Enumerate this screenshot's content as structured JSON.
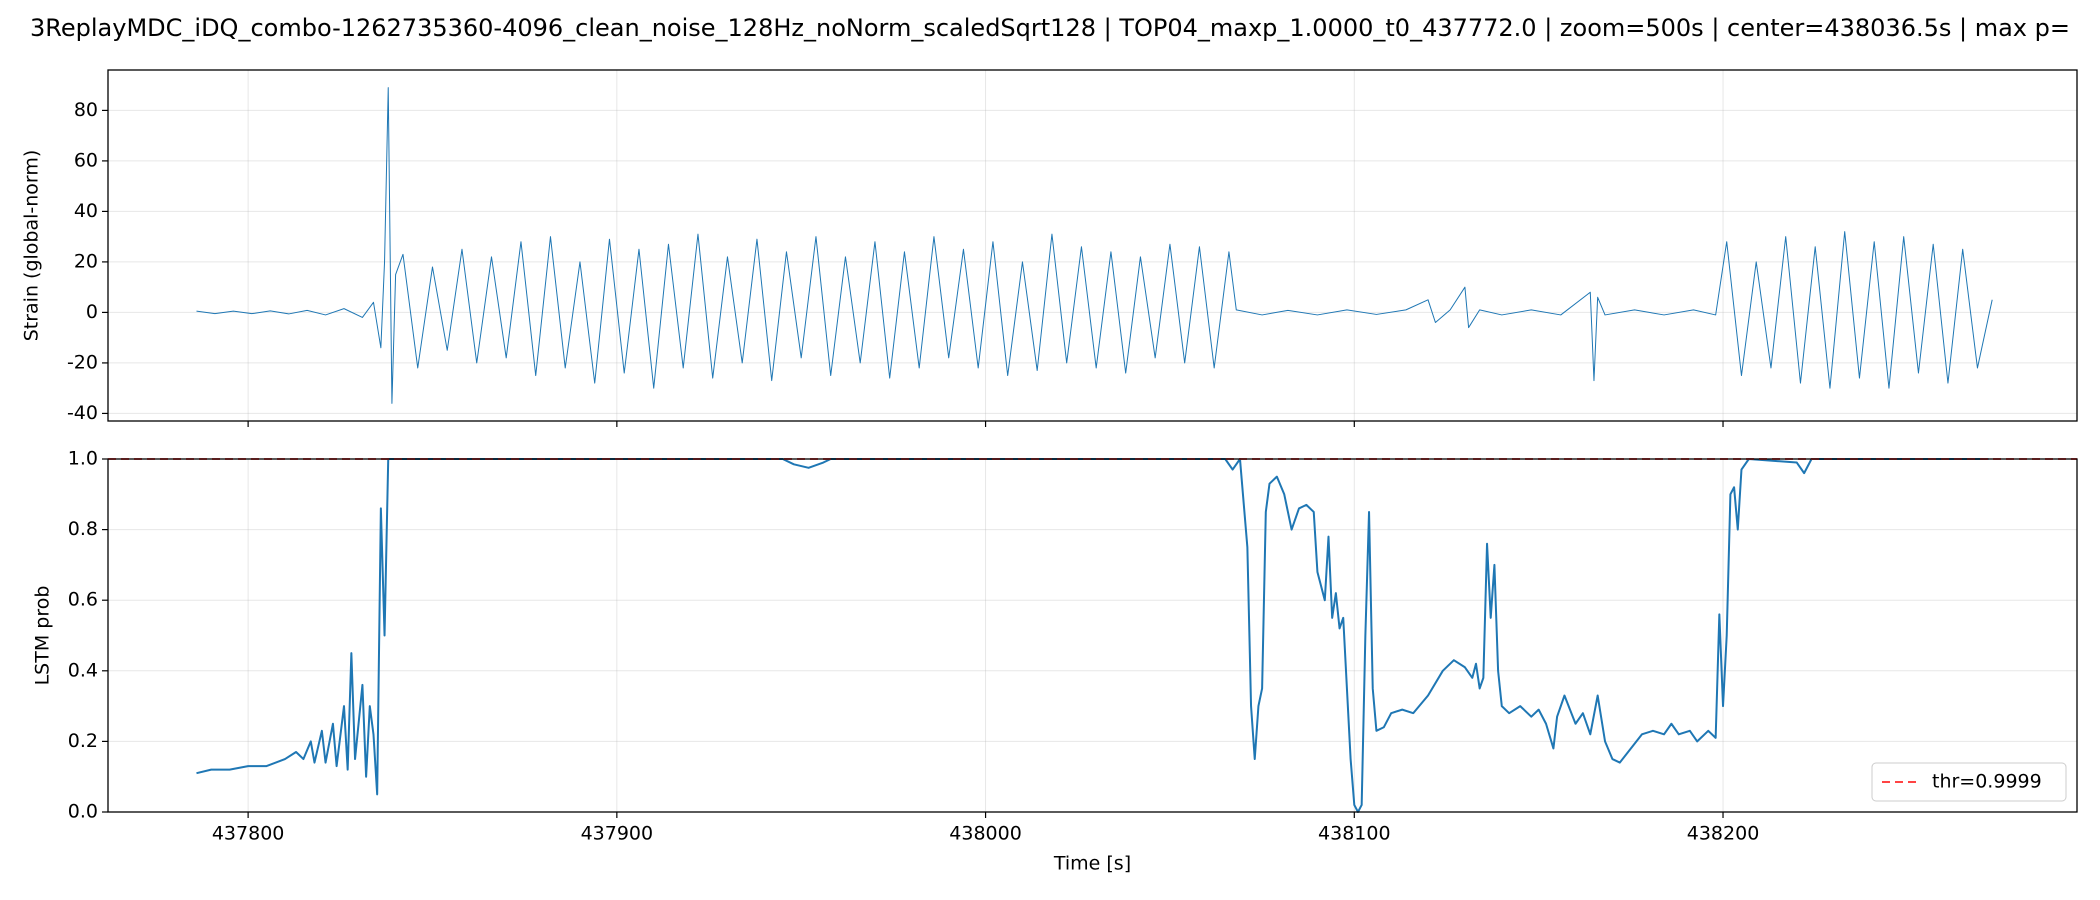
{
  "chart_data": [
    {
      "type": "line",
      "title": "3ReplayMDC_iDQ_combo-1262735360-4096_clean_noise_128Hz_noNorm_scaledSqrt128 | TOP04_maxp_1.0000_t0_437772.0 | zoom=500s | center=438036.5s | max p=",
      "ylabel": "Strain (global-norm)",
      "xlim": [
        437762,
        438296
      ],
      "xticks": [
        437800,
        437900,
        438000,
        438100,
        438200
      ],
      "ylim": [
        -43,
        96
      ],
      "yticks": [
        -40,
        -20,
        0,
        20,
        40,
        60,
        80
      ],
      "grid": true,
      "x": [
        437786,
        437791,
        437796,
        437801,
        437806,
        437811,
        437816,
        437821,
        437826,
        437831,
        437834,
        437836,
        437837,
        437838,
        437839,
        437840,
        437842,
        437846,
        437850,
        437854,
        437858,
        437862,
        437866,
        437870,
        437874,
        437878,
        437882,
        437886,
        437890,
        437894,
        437898,
        437902,
        437906,
        437910,
        437914,
        437918,
        437922,
        437926,
        437930,
        437934,
        437938,
        437942,
        437946,
        437950,
        437954,
        437958,
        437962,
        437966,
        437970,
        437974,
        437978,
        437982,
        437986,
        437990,
        437994,
        437998,
        438002,
        438006,
        438010,
        438014,
        438018,
        438022,
        438026,
        438030,
        438034,
        438038,
        438042,
        438046,
        438050,
        438054,
        438058,
        438062,
        438066,
        438068,
        438075,
        438082,
        438090,
        438098,
        438106,
        438114,
        438120,
        438122,
        438126,
        438130,
        438131,
        438134,
        438140,
        438148,
        438156,
        438164,
        438165,
        438166,
        438168,
        438176,
        438184,
        438192,
        438198,
        438201,
        438205,
        438209,
        438213,
        438217,
        438221,
        438225,
        438229,
        438233,
        438237,
        438241,
        438245,
        438249,
        438253,
        438257,
        438261,
        438265,
        438269,
        438273
      ],
      "series": [
        {
          "color": "#1f77b4",
          "values": [
            0.5,
            -0.5,
            0.5,
            -0.5,
            0.6,
            -0.6,
            0.8,
            -1,
            1.5,
            -2,
            4,
            -14,
            20,
            89,
            -36,
            15,
            23,
            -22,
            18,
            -15,
            25,
            -20,
            22,
            -18,
            28,
            -25,
            30,
            -22,
            20,
            -28,
            29,
            -24,
            25,
            -30,
            27,
            -22,
            31,
            -26,
            22,
            -20,
            29,
            -27,
            24,
            -18,
            30,
            -25,
            22,
            -20,
            28,
            -26,
            24,
            -22,
            30,
            -18,
            25,
            -22,
            28,
            -25,
            20,
            -23,
            31,
            -20,
            26,
            -22,
            24,
            -24,
            22,
            -18,
            27,
            -20,
            26,
            -22,
            24,
            1,
            -1,
            0.8,
            -1,
            1,
            -0.8,
            1,
            5,
            -4,
            1,
            10,
            -6,
            1,
            -1,
            1,
            -1,
            8,
            -27,
            6,
            -1,
            1,
            -1,
            1,
            -1,
            28,
            -25,
            20,
            -22,
            30,
            -28,
            26,
            -30,
            32,
            -26,
            28,
            -30,
            30,
            -24,
            27,
            -28,
            25,
            -22,
            5
          ]
        }
      ]
    },
    {
      "type": "line",
      "ylabel": "LSTM prob",
      "xlabel": "Time [s]",
      "xlim": [
        437762,
        438296
      ],
      "xticks": [
        437800,
        437900,
        438000,
        438100,
        438200
      ],
      "ylim": [
        0,
        1
      ],
      "yticks": [
        {
          "value": 0,
          "label": "0.0"
        },
        {
          "value": 0.2,
          "label": "0.2"
        },
        {
          "value": 0.4,
          "label": "0.4"
        },
        {
          "value": 0.6,
          "label": "0.6"
        },
        {
          "value": 0.8,
          "label": "0.8"
        },
        {
          "value": 1,
          "label": "1.0"
        }
      ],
      "grid": true,
      "legend": "lower right",
      "threshold": {
        "value": 0.9999,
        "label": "thr=0.9999",
        "color": "#ff4444"
      },
      "x": [
        437786,
        437790,
        437795,
        437800,
        437805,
        437810,
        437813,
        437815,
        437817,
        437818,
        437820,
        437821,
        437823,
        437824,
        437826,
        437827,
        437828,
        437829,
        437831,
        437832,
        437833,
        437834,
        437835,
        437836,
        437837,
        437838,
        437840,
        437945,
        437948,
        437952,
        437956,
        437958,
        438065,
        438067,
        438069,
        438071,
        438072,
        438073,
        438074,
        438075,
        438076,
        438077,
        438079,
        438081,
        438083,
        438085,
        438087,
        438089,
        438090,
        438092,
        438093,
        438094,
        438095,
        438096,
        438097,
        438098,
        438099,
        438100,
        438101,
        438102,
        438103,
        438104,
        438105,
        438106,
        438108,
        438110,
        438113,
        438116,
        438120,
        438124,
        438127,
        438130,
        438132,
        438133,
        438134,
        438135,
        438136,
        438137,
        438138,
        438139,
        438140,
        438142,
        438145,
        438148,
        438150,
        438152,
        438154,
        438155,
        438157,
        438160,
        438162,
        438164,
        438166,
        438168,
        438170,
        438172,
        438175,
        438178,
        438181,
        438184,
        438186,
        438188,
        438191,
        438193,
        438196,
        438198,
        438199,
        438200,
        438201,
        438202,
        438203,
        438204,
        438205,
        438207,
        438220,
        438222,
        438224,
        438272
      ],
      "series": [
        {
          "color": "#1f77b4",
          "values": [
            0.11,
            0.12,
            0.12,
            0.13,
            0.13,
            0.15,
            0.17,
            0.15,
            0.2,
            0.14,
            0.23,
            0.14,
            0.25,
            0.13,
            0.3,
            0.12,
            0.45,
            0.15,
            0.36,
            0.1,
            0.3,
            0.22,
            0.05,
            0.86,
            0.5,
            1.0,
            1.0,
            1.0,
            0.985,
            0.975,
            0.99,
            1.0,
            1.0,
            0.97,
            1.0,
            0.75,
            0.3,
            0.15,
            0.3,
            0.35,
            0.85,
            0.93,
            0.95,
            0.9,
            0.8,
            0.86,
            0.87,
            0.85,
            0.68,
            0.6,
            0.78,
            0.55,
            0.62,
            0.52,
            0.55,
            0.35,
            0.15,
            0.02,
            0.0,
            0.02,
            0.5,
            0.85,
            0.35,
            0.23,
            0.24,
            0.28,
            0.29,
            0.28,
            0.33,
            0.4,
            0.43,
            0.41,
            0.38,
            0.42,
            0.35,
            0.38,
            0.76,
            0.55,
            0.7,
            0.4,
            0.3,
            0.28,
            0.3,
            0.27,
            0.29,
            0.25,
            0.18,
            0.27,
            0.33,
            0.25,
            0.28,
            0.22,
            0.33,
            0.2,
            0.15,
            0.14,
            0.18,
            0.22,
            0.23,
            0.22,
            0.25,
            0.22,
            0.23,
            0.2,
            0.23,
            0.21,
            0.56,
            0.3,
            0.5,
            0.9,
            0.92,
            0.8,
            0.97,
            1.0,
            0.99,
            0.96,
            1.0,
            1.0
          ]
        }
      ]
    }
  ]
}
